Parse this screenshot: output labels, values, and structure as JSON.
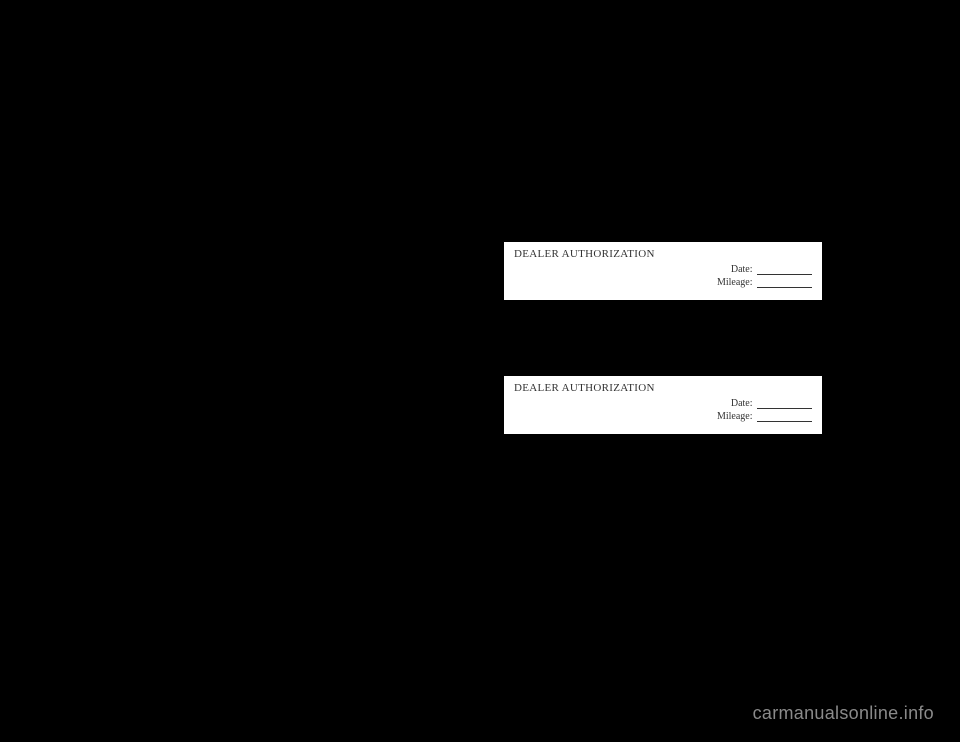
{
  "authBoxes": [
    {
      "title": "DEALER AUTHORIZATION",
      "dateLabel": "Date:",
      "mileageLabel": "Mileage:"
    },
    {
      "title": "DEALER AUTHORIZATION",
      "dateLabel": "Date:",
      "mileageLabel": "Mileage:"
    }
  ],
  "watermark": "carmanualsonline.info",
  "colors": {
    "background": "#000000",
    "box_background": "#ffffff",
    "text": "#333333",
    "watermark": "#8a8a8a",
    "line": "#333333"
  },
  "typography": {
    "title_fontsize": 11,
    "field_fontsize": 10,
    "watermark_fontsize": 18
  }
}
